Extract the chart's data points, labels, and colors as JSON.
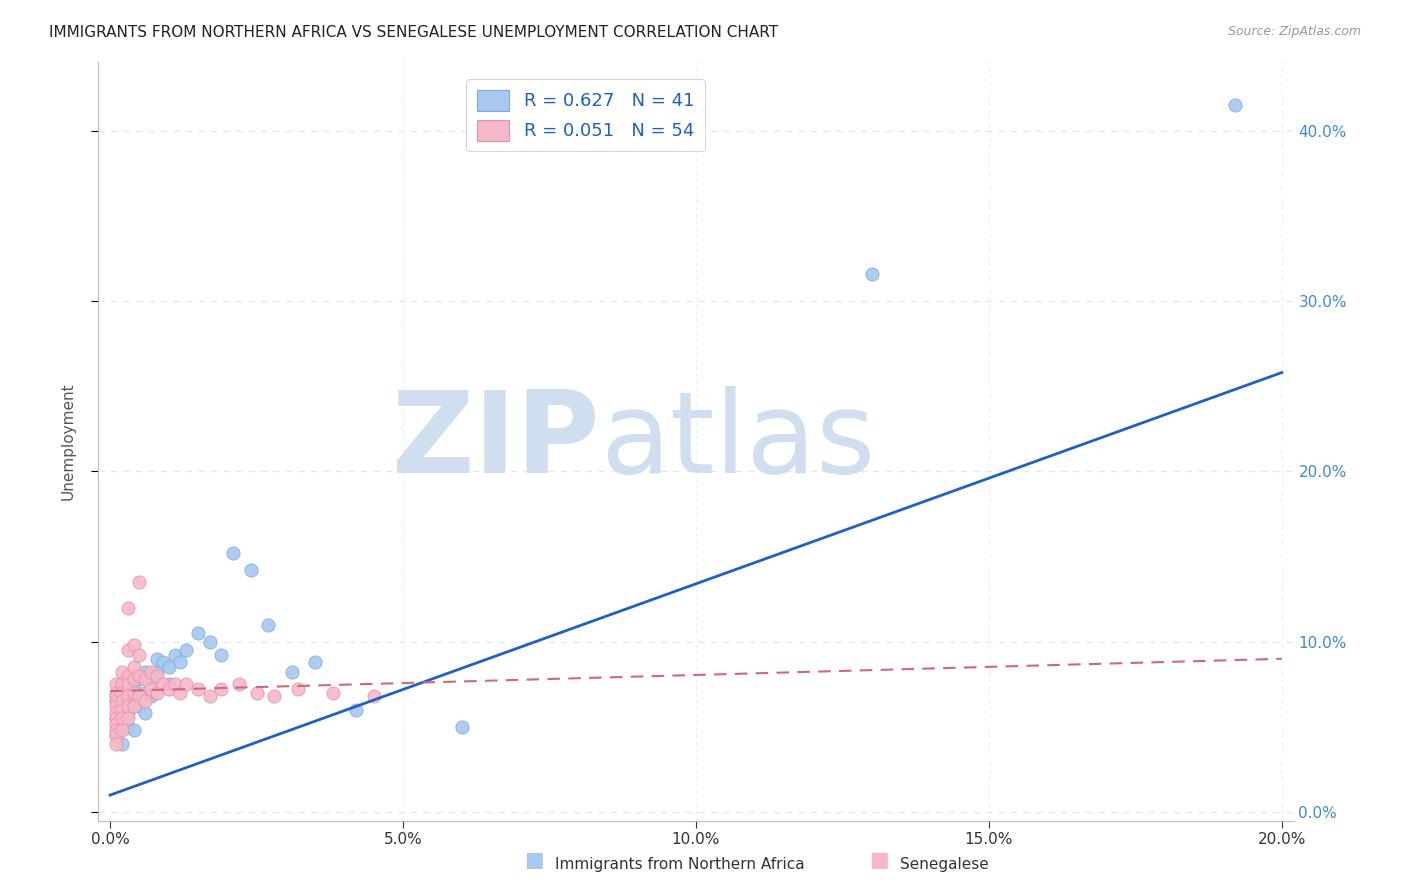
{
  "title": "IMMIGRANTS FROM NORTHERN AFRICA VS SENEGALESE UNEMPLOYMENT CORRELATION CHART",
  "source": "Source: ZipAtlas.com",
  "ylabel": "Unemployment",
  "xlim": [
    -0.002,
    0.202
  ],
  "ylim": [
    -0.005,
    0.44
  ],
  "xticks": [
    0.0,
    0.05,
    0.1,
    0.15,
    0.2
  ],
  "yticks": [
    0.0,
    0.1,
    0.2,
    0.3,
    0.4
  ],
  "blue_R": 0.627,
  "blue_N": 41,
  "pink_R": 0.051,
  "pink_N": 54,
  "blue_color": "#a8c8f0",
  "blue_edge": "#7aaade",
  "pink_color": "#f5b8c8",
  "pink_edge": "#e890a8",
  "trend_blue": "#2060c0",
  "trend_pink": "#d06878",
  "watermark_zip": "ZIP",
  "watermark_atlas": "atlas",
  "watermark_color": "#d0dff0",
  "background": "#ffffff",
  "grid_color": "#dde8f4",
  "title_color": "#222222",
  "source_color": "#999999",
  "axis_label_color": "#555555",
  "tick_color": "#333333",
  "right_tick_color": "#4488cc",
  "blue_scatter_x": [
    0.001,
    0.001,
    0.001,
    0.002,
    0.002,
    0.002,
    0.002,
    0.003,
    0.003,
    0.003,
    0.003,
    0.004,
    0.004,
    0.004,
    0.005,
    0.005,
    0.006,
    0.006,
    0.006,
    0.007,
    0.007,
    0.008,
    0.008,
    0.009,
    0.01,
    0.01,
    0.011,
    0.012,
    0.013,
    0.015,
    0.017,
    0.019,
    0.021,
    0.024,
    0.027,
    0.031,
    0.035,
    0.042,
    0.06,
    0.13,
    0.192
  ],
  "blue_scatter_y": [
    0.055,
    0.065,
    0.045,
    0.06,
    0.07,
    0.055,
    0.04,
    0.065,
    0.075,
    0.058,
    0.05,
    0.065,
    0.072,
    0.048,
    0.062,
    0.078,
    0.058,
    0.07,
    0.082,
    0.068,
    0.078,
    0.082,
    0.09,
    0.088,
    0.085,
    0.075,
    0.092,
    0.088,
    0.095,
    0.105,
    0.1,
    0.092,
    0.152,
    0.142,
    0.11,
    0.082,
    0.088,
    0.06,
    0.05,
    0.316,
    0.415
  ],
  "pink_scatter_x": [
    0.001,
    0.001,
    0.001,
    0.001,
    0.001,
    0.001,
    0.001,
    0.001,
    0.001,
    0.001,
    0.001,
    0.002,
    0.002,
    0.002,
    0.002,
    0.002,
    0.002,
    0.002,
    0.003,
    0.003,
    0.003,
    0.003,
    0.003,
    0.003,
    0.003,
    0.004,
    0.004,
    0.004,
    0.004,
    0.004,
    0.005,
    0.005,
    0.005,
    0.005,
    0.006,
    0.006,
    0.007,
    0.007,
    0.008,
    0.008,
    0.009,
    0.01,
    0.011,
    0.012,
    0.013,
    0.015,
    0.017,
    0.019,
    0.022,
    0.025,
    0.028,
    0.032,
    0.038,
    0.045
  ],
  "pink_scatter_y": [
    0.075,
    0.07,
    0.068,
    0.065,
    0.062,
    0.058,
    0.055,
    0.052,
    0.048,
    0.045,
    0.04,
    0.082,
    0.075,
    0.07,
    0.065,
    0.06,
    0.055,
    0.048,
    0.12,
    0.095,
    0.08,
    0.075,
    0.068,
    0.062,
    0.055,
    0.098,
    0.085,
    0.078,
    0.07,
    0.062,
    0.135,
    0.092,
    0.08,
    0.068,
    0.078,
    0.065,
    0.082,
    0.072,
    0.08,
    0.07,
    0.075,
    0.072,
    0.075,
    0.07,
    0.075,
    0.072,
    0.068,
    0.072,
    0.075,
    0.07,
    0.068,
    0.072,
    0.07,
    0.068
  ],
  "blue_trend_x0": 0.0,
  "blue_trend_y0": 0.01,
  "blue_trend_x1": 0.2,
  "blue_trend_y1": 0.258,
  "pink_trend_x0": 0.0,
  "pink_trend_y0": 0.071,
  "pink_trend_x1": 0.2,
  "pink_trend_y1": 0.09
}
